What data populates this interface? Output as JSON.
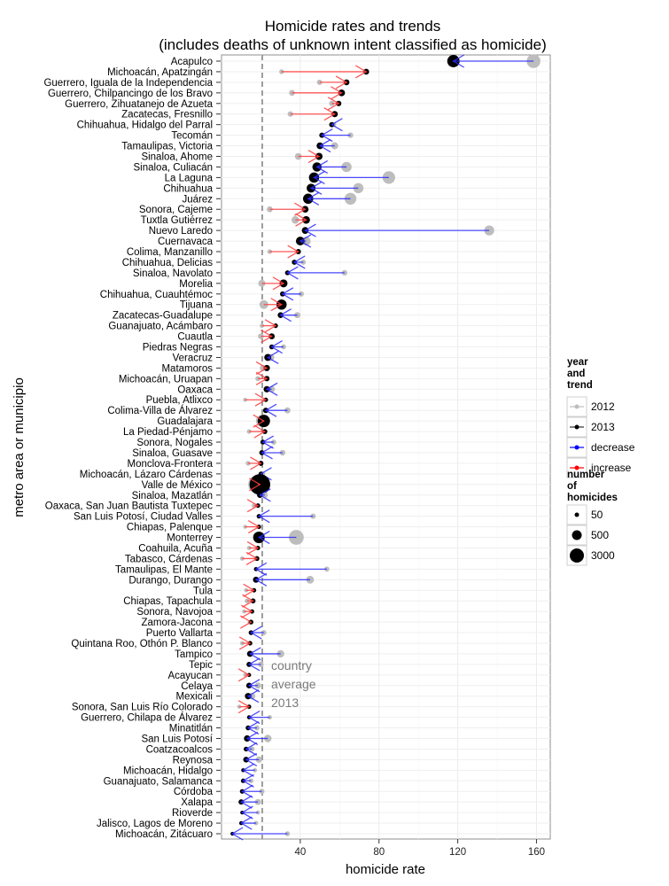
{
  "chart_data": {
    "type": "scatter",
    "subtype": "dumbbell-arrow",
    "title": "Homicide rates and trends",
    "subtitle": "(includes deaths of unknown intent classified as homicide)",
    "xlabel": "homicide rate",
    "ylabel": "metro area or municipio",
    "xlim": [
      0,
      167
    ],
    "xticks": [
      40,
      80,
      120,
      160
    ],
    "grid": true,
    "country_average_2013": 20.7,
    "annotation": [
      "country",
      "average",
      "2013"
    ],
    "legend": {
      "position": "right",
      "trend_title": [
        "year",
        "and",
        "trend"
      ],
      "trend_items": [
        {
          "label": "2012",
          "color": "#bdbdbd"
        },
        {
          "label": "2013",
          "color": "#000000"
        },
        {
          "label": "decrease",
          "color": "#0000ff"
        },
        {
          "label": "increase",
          "color": "#ff0000"
        }
      ],
      "size_title": [
        "number",
        "of",
        "homicides"
      ],
      "size_items": [
        {
          "label": "50",
          "value": 50
        },
        {
          "label": "500",
          "value": 500
        },
        {
          "label": "3000",
          "value": 3000
        }
      ]
    },
    "colors": {
      "y2012": "#bdbdbd",
      "y2013": "#000000",
      "decrease": "#2b2bff",
      "increase": "#ff3b3b",
      "dashed": "#7f7f7f"
    },
    "rows": [
      {
        "name": "Acapulco",
        "r2012": 158.5,
        "r2013": 117.8,
        "n2012": 1300,
        "n2013": 1000
      },
      {
        "name": "Michoacán, Apatzingán",
        "r2012": 30.5,
        "r2013": 73.5,
        "n2012": 40,
        "n2013": 100
      },
      {
        "name": "Guerrero, Iguala de la Independencia",
        "r2012": 49.8,
        "r2013": 63.5,
        "n2012": 70,
        "n2013": 100
      },
      {
        "name": "Guerrero, Chilpancingo de los Bravo",
        "r2012": 35.8,
        "r2013": 61.0,
        "n2012": 100,
        "n2013": 170
      },
      {
        "name": "Guerrero, Zihuatanejo de Azueta",
        "r2012": 56.0,
        "r2013": 59.5,
        "n2012": 70,
        "n2013": 75
      },
      {
        "name": "Zacatecas, Fresnillo",
        "r2012": 35.0,
        "r2013": 57.5,
        "n2012": 80,
        "n2013": 130
      },
      {
        "name": "Chihuahua, Hidalgo del Parral",
        "r2012": 57.0,
        "r2013": 56.0,
        "n2012": 60,
        "n2013": 60
      },
      {
        "name": "Tecomán",
        "r2012": 65.5,
        "r2013": 51.0,
        "n2012": 80,
        "n2013": 65
      },
      {
        "name": "Tamaulipas, Victoria",
        "r2012": 57.5,
        "r2013": 50.0,
        "n2012": 200,
        "n2013": 170
      },
      {
        "name": "Sinaloa, Ahome",
        "r2012": 39.0,
        "r2013": 49.5,
        "n2012": 170,
        "n2013": 210
      },
      {
        "name": "Sinaloa, Culiacán",
        "r2012": 63.5,
        "r2013": 48.5,
        "n2012": 600,
        "n2013": 450
      },
      {
        "name": "La Laguna",
        "r2012": 85.0,
        "r2013": 47.0,
        "n2012": 1050,
        "n2013": 600
      },
      {
        "name": "Chihuahua",
        "r2012": 69.5,
        "r2013": 45.5,
        "n2012": 600,
        "n2013": 400
      },
      {
        "name": "Juárez",
        "r2012": 65.5,
        "r2013": 44.0,
        "n2012": 900,
        "n2013": 600
      },
      {
        "name": "Sonora, Cajeme",
        "r2012": 24.5,
        "r2013": 42.5,
        "n2012": 100,
        "n2013": 170
      },
      {
        "name": "Tuxtla Gutiérrez",
        "r2012": 37.5,
        "r2013": 43.0,
        "n2012": 250,
        "n2013": 250
      },
      {
        "name": "Nuevo Laredo",
        "r2012": 136.0,
        "r2013": 42.5,
        "n2012": 550,
        "n2013": 170
      },
      {
        "name": "Cuernavaca",
        "r2012": 43.0,
        "r2013": 40.0,
        "n2012": 400,
        "n2013": 380
      },
      {
        "name": "Colima, Manzanillo",
        "r2012": 24.5,
        "r2013": 39.0,
        "n2012": 40,
        "n2013": 65
      },
      {
        "name": "Chihuahua, Delicias",
        "r2012": 41.5,
        "r2013": 37.0,
        "n2012": 60,
        "n2013": 55
      },
      {
        "name": "Sinaloa, Navolato",
        "r2012": 62.5,
        "r2013": 33.5,
        "n2012": 80,
        "n2013": 45
      },
      {
        "name": "Morelia",
        "r2012": 20.5,
        "r2013": 31.5,
        "n2012": 200,
        "n2013": 290
      },
      {
        "name": "Chihuahua, Cuauhtémoc",
        "r2012": 40.5,
        "r2013": 31.0,
        "n2012": 70,
        "n2013": 55
      },
      {
        "name": "Tijuana",
        "r2012": 21.5,
        "r2013": 30.5,
        "n2012": 400,
        "n2013": 600
      },
      {
        "name": "Zacatecas-Guadalupe",
        "r2012": 38.5,
        "r2013": 30.0,
        "n2012": 120,
        "n2013": 95
      },
      {
        "name": "Guanajuato, Acámbaro",
        "r2012": 20.5,
        "r2013": 27.5,
        "n2012": 25,
        "n2013": 33
      },
      {
        "name": "Cuautla",
        "r2012": 20.0,
        "r2013": 25.5,
        "n2012": 90,
        "n2013": 110
      },
      {
        "name": "Piedras Negras",
        "r2012": 31.5,
        "r2013": 25.5,
        "n2012": 55,
        "n2013": 45
      },
      {
        "name": "Veracruz",
        "r2012": 25.0,
        "r2013": 23.5,
        "n2012": 200,
        "n2013": 190
      },
      {
        "name": "Matamoros",
        "r2012": 21.0,
        "r2013": 23.0,
        "n2012": 120,
        "n2013": 130
      },
      {
        "name": "Michoacán, Uruapan",
        "r2012": 18.5,
        "r2013": 23.0,
        "n2012": 60,
        "n2013": 75
      },
      {
        "name": "Oaxaca",
        "r2012": 25.5,
        "r2013": 23.0,
        "n2012": 150,
        "n2013": 140
      },
      {
        "name": "Puebla, Atlixco",
        "r2012": 12.0,
        "r2013": 22.5,
        "n2012": 15,
        "n2013": 30
      },
      {
        "name": "Colima-Villa de Álvarez",
        "r2012": 33.5,
        "r2013": 22.5,
        "n2012": 110,
        "n2013": 75
      },
      {
        "name": "Guadalajara",
        "r2012": 20.5,
        "r2013": 21.5,
        "n2012": 900,
        "n2013": 1000
      },
      {
        "name": "La Piedad-Pénjamo",
        "r2012": 14.0,
        "r2013": 22.0,
        "n2012": 30,
        "n2013": 50
      },
      {
        "name": "Sonora, Nogales",
        "r2012": 26.5,
        "r2013": 21.0,
        "n2012": 60,
        "n2013": 48
      },
      {
        "name": "Sinaloa, Guasave",
        "r2012": 31.0,
        "r2013": 20.5,
        "n2012": 90,
        "n2013": 60
      },
      {
        "name": "Monclova-Frontera",
        "r2012": 13.5,
        "r2013": 20.0,
        "n2012": 40,
        "n2013": 60
      },
      {
        "name": "Michoacán, Lázaro Cárdenas",
        "r2012": 21.0,
        "r2013": 20.0,
        "n2012": 40,
        "n2013": 38
      },
      {
        "name": "Valle de México",
        "r2012": 18.5,
        "r2013": 19.5,
        "n2012": 3000,
        "n2013": 3500
      },
      {
        "name": "Sinaloa, Mazatlán",
        "r2012": 22.0,
        "r2013": 19.5,
        "n2012": 110,
        "n2013": 95
      },
      {
        "name": "Oaxaca, San Juan Bautista Tuxtepec",
        "r2012": 16.5,
        "r2013": 18.5,
        "n2012": 30,
        "n2013": 30
      },
      {
        "name": "San Luis Potosí, Ciudad Valles",
        "r2012": 46.5,
        "r2013": 19.0,
        "n2012": 70,
        "n2013": 32
      },
      {
        "name": "Chiapas, Palenque",
        "r2012": 12.0,
        "r2013": 19.0,
        "n2012": 15,
        "n2013": 25
      },
      {
        "name": "Monterrey",
        "r2012": 38.0,
        "r2013": 19.0,
        "n2012": 1600,
        "n2013": 850
      },
      {
        "name": "Coahuila, Acuña",
        "r2012": 14.0,
        "r2013": 18.5,
        "n2012": 20,
        "n2013": 27
      },
      {
        "name": "Tabasco, Cárdenas",
        "r2012": 10.5,
        "r2013": 18.0,
        "n2012": 25,
        "n2013": 45
      },
      {
        "name": "Tamaulipas, El Mante",
        "r2012": 53.5,
        "r2013": 17.5,
        "n2012": 60,
        "n2013": 20
      },
      {
        "name": "Durango, Durango",
        "r2012": 45.0,
        "r2013": 17.5,
        "n2012": 270,
        "n2013": 110
      },
      {
        "name": "Tula",
        "r2012": 12.5,
        "r2013": 16.5,
        "n2012": 20,
        "n2013": 27
      },
      {
        "name": "Chiapas, Tapachula",
        "r2012": 13.0,
        "r2013": 16.0,
        "n2012": 45,
        "n2013": 53
      },
      {
        "name": "Sonora, Navojoa",
        "r2012": 11.5,
        "r2013": 15.5,
        "n2012": 18,
        "n2013": 25
      },
      {
        "name": "Zamora-Jacona",
        "r2012": 14.5,
        "r2013": 15.0,
        "n2012": 38,
        "n2013": 40
      },
      {
        "name": "Puerto Vallarta",
        "r2012": 21.5,
        "r2013": 15.0,
        "n2012": 60,
        "n2013": 42
      },
      {
        "name": "Quintana Roo, Othón P. Blanco",
        "r2012": 10.5,
        "r2013": 14.5,
        "n2012": 25,
        "n2013": 33
      },
      {
        "name": "Tampico",
        "r2012": 30.0,
        "r2013": 14.5,
        "n2012": 240,
        "n2013": 120
      },
      {
        "name": "Tepic",
        "r2012": 20.0,
        "r2013": 14.0,
        "n2012": 80,
        "n2013": 60
      },
      {
        "name": "Acayucan",
        "r2012": 12.0,
        "r2013": 14.0,
        "n2012": 14,
        "n2013": 16
      },
      {
        "name": "Celaya",
        "r2012": 18.5,
        "r2013": 14.0,
        "n2012": 120,
        "n2013": 90
      },
      {
        "name": "Mexicali",
        "r2012": 15.5,
        "r2013": 13.5,
        "n2012": 150,
        "n2013": 140
      },
      {
        "name": "Sonora, San Luis Río Colorado",
        "r2012": 9.0,
        "r2013": 14.0,
        "n2012": 17,
        "n2013": 25
      },
      {
        "name": "Guerrero, Chilapa de Álvarez",
        "r2012": 24.5,
        "r2013": 14.0,
        "n2012": 30,
        "n2013": 17
      },
      {
        "name": "Minatitlán",
        "r2012": 18.0,
        "r2013": 13.5,
        "n2012": 60,
        "n2013": 45
      },
      {
        "name": "San Luis Potosí",
        "r2012": 23.5,
        "r2013": 13.0,
        "n2012": 250,
        "n2013": 140
      },
      {
        "name": "Coatzacoalcos",
        "r2012": 15.5,
        "r2013": 12.5,
        "n2012": 55,
        "n2013": 45
      },
      {
        "name": "Reynosa",
        "r2012": 19.0,
        "r2013": 12.5,
        "n2012": 140,
        "n2013": 95
      },
      {
        "name": "Michoacán, Hidalgo",
        "r2012": 17.0,
        "r2013": 11.0,
        "n2012": 20,
        "n2013": 14
      },
      {
        "name": "Guanajuato, Salamanca",
        "r2012": 15.0,
        "r2013": 11.0,
        "n2012": 40,
        "n2013": 30
      },
      {
        "name": "Córdoba",
        "r2012": 20.5,
        "r2013": 10.5,
        "n2012": 65,
        "n2013": 35
      },
      {
        "name": "Xalapa",
        "r2012": 18.5,
        "r2013": 10.0,
        "n2012": 120,
        "n2013": 70
      },
      {
        "name": "Rioverde",
        "r2012": 18.5,
        "r2013": 10.5,
        "n2012": 17,
        "n2013": 11
      },
      {
        "name": "Jalisco, Lagos de Moreno",
        "r2012": 17.5,
        "r2013": 10.0,
        "n2012": 27,
        "n2013": 16
      },
      {
        "name": "Michoacán, Zitácuaro",
        "r2012": 33.5,
        "r2013": 5.5,
        "n2012": 50,
        "n2013": 9
      }
    ]
  }
}
